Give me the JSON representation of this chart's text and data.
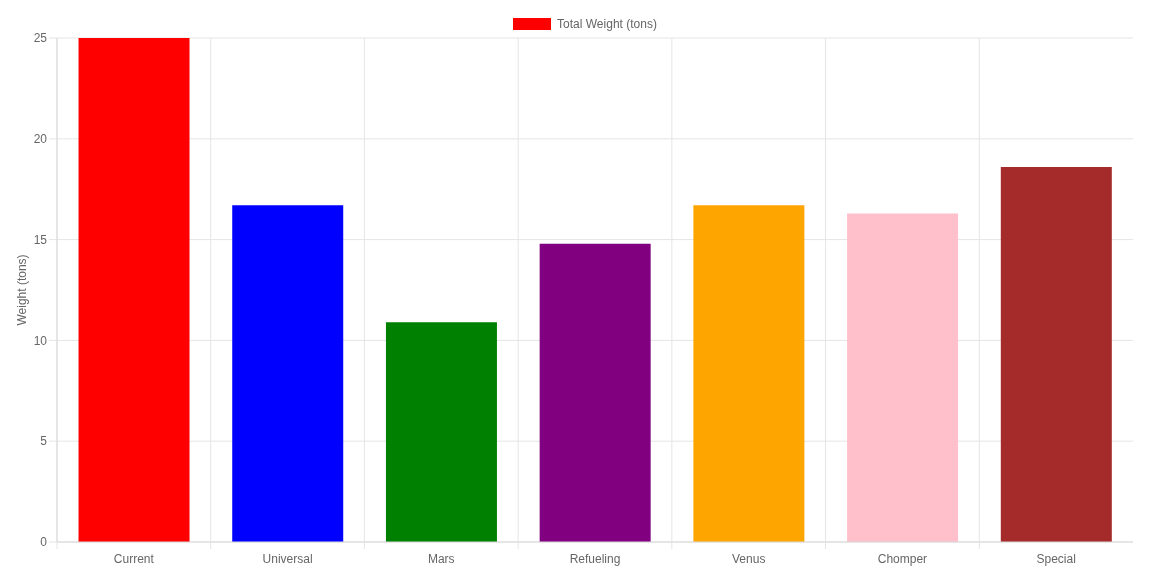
{
  "chart_data": {
    "type": "bar",
    "ylabel": "Weight (tons)",
    "categories": [
      "Current",
      "Universal",
      "Mars",
      "Refueling",
      "Venus",
      "Chomper",
      "Special"
    ],
    "series": [
      {
        "name": "Total Weight (tons)",
        "colors": [
          "#ff0000",
          "#0000ff",
          "#008000",
          "#800080",
          "#ffa500",
          "#ffc0cb",
          "#a52a2a"
        ],
        "values": [
          25,
          16.7,
          10.9,
          14.8,
          16.7,
          16.3,
          18.6
        ]
      }
    ],
    "ylim": [
      0,
      25
    ],
    "yticks": [
      0,
      5,
      10,
      15,
      20,
      25
    ],
    "grid": true,
    "legend": "top"
  }
}
